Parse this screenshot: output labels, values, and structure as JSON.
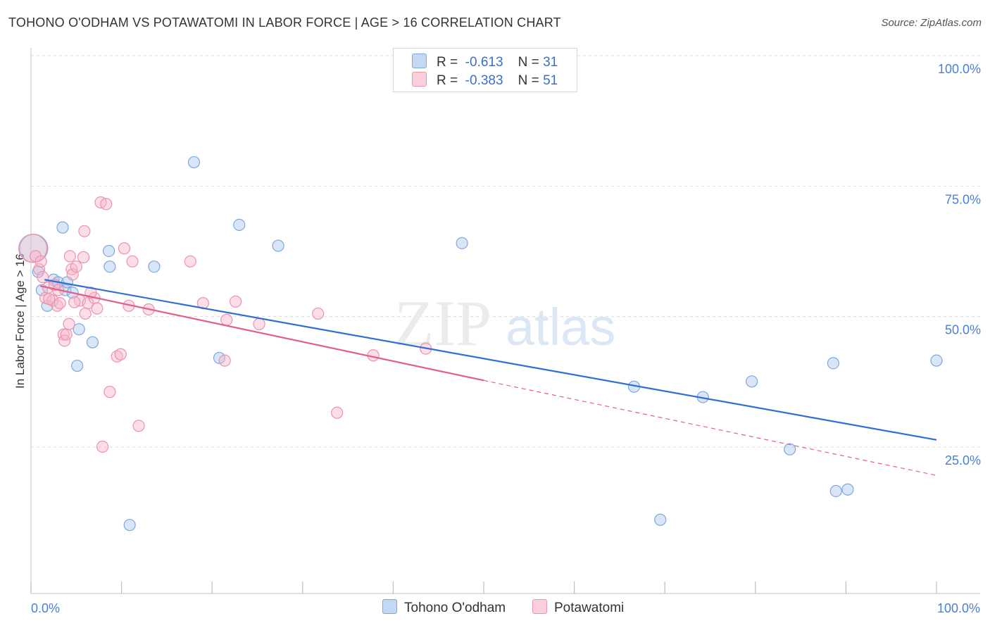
{
  "title": "TOHONO O'ODHAM VS POTAWATOMI IN LABOR FORCE | AGE > 16 CORRELATION CHART",
  "source": "Source: ZipAtlas.com",
  "watermark": {
    "zip": "ZIP",
    "atlas": "atlas"
  },
  "legend": {
    "rows": [
      {
        "r_label": "R =",
        "r_value": "-0.613",
        "n_label": "N =",
        "n_value": "31",
        "color": "#a9c8f0"
      },
      {
        "r_label": "R =",
        "r_value": "-0.383",
        "n_label": "N =",
        "n_value": "51",
        "color": "#f6b6c9"
      }
    ]
  },
  "bottom_legend": [
    {
      "label": "Tohono O'odham",
      "color": "#a9c8f0"
    },
    {
      "label": "Potawatomi",
      "color": "#f6b6c9"
    }
  ],
  "chart_data": {
    "type": "scatter",
    "title": "TOHONO O'ODHAM VS POTAWATOMI IN LABOR FORCE | AGE > 16 CORRELATION CHART",
    "xlabel": "",
    "ylabel": "In Labor Force | Age > 16",
    "xlim": [
      0,
      100
    ],
    "ylim": [
      2,
      103
    ],
    "x_tick_labels": [
      "0.0%",
      "100.0%"
    ],
    "y_ticks": [
      {
        "value": 25,
        "label": "25.0%"
      },
      {
        "value": 50,
        "label": "50.0%"
      },
      {
        "value": 75,
        "label": "75.0%"
      },
      {
        "value": 100,
        "label": "100.0%"
      }
    ],
    "grid": "horizontal dashed",
    "series": [
      {
        "name": "Tohono O'odham",
        "color": "#a9c8f0",
        "stroke": "#7fa8dd",
        "trend_color": "#2f6fd0",
        "trend": {
          "x0": 1.5,
          "y0": 59.5,
          "x1": 100,
          "y1": 28.8
        },
        "points": [
          [
            0.3,
            65.5
          ],
          [
            0.8,
            61.0
          ],
          [
            1.2,
            57.5
          ],
          [
            1.8,
            54.5
          ],
          [
            2.5,
            59.5
          ],
          [
            3.0,
            59.0
          ],
          [
            3.8,
            57.5
          ],
          [
            4.6,
            57.0
          ],
          [
            5.3,
            50.0
          ],
          [
            5.1,
            43.0
          ],
          [
            6.8,
            47.5
          ],
          [
            3.5,
            69.5
          ],
          [
            8.6,
            65.0
          ],
          [
            8.7,
            62.0
          ],
          [
            13.6,
            62.0
          ],
          [
            18.0,
            82.0
          ],
          [
            23.0,
            70.0
          ],
          [
            27.3,
            66.0
          ],
          [
            47.6,
            66.5
          ],
          [
            20.8,
            44.5
          ],
          [
            10.9,
            12.5
          ],
          [
            66.6,
            39.0
          ],
          [
            74.2,
            37.0
          ],
          [
            79.6,
            40.0
          ],
          [
            83.8,
            27.0
          ],
          [
            88.6,
            43.5
          ],
          [
            88.9,
            19.0
          ],
          [
            90.2,
            19.3
          ],
          [
            100.0,
            44.0
          ],
          [
            69.5,
            13.5
          ],
          [
            4.0,
            59.0
          ]
        ]
      },
      {
        "name": "Potawatomi",
        "color": "#f6b6c9",
        "stroke": "#ec93ad",
        "trend_color": "#e0608c",
        "trend": {
          "x0": 1.0,
          "y0": 58.3,
          "x1": 50,
          "y1": 40.2
        },
        "trend_dashed": {
          "x0": 50,
          "y0": 40.2,
          "x1": 100,
          "y1": 22.0
        },
        "points": [
          [
            0.2,
            65.5
          ],
          [
            0.5,
            64.0
          ],
          [
            0.9,
            61.5
          ],
          [
            1.3,
            60.0
          ],
          [
            1.6,
            56.0
          ],
          [
            1.9,
            58.0
          ],
          [
            2.4,
            55.5
          ],
          [
            2.6,
            58.5
          ],
          [
            2.9,
            54.5
          ],
          [
            3.2,
            55.0
          ],
          [
            3.6,
            49.0
          ],
          [
            3.7,
            47.8
          ],
          [
            3.9,
            49.0
          ],
          [
            4.2,
            51.0
          ],
          [
            4.5,
            61.5
          ],
          [
            4.3,
            64.0
          ],
          [
            4.6,
            60.5
          ],
          [
            5.0,
            62.0
          ],
          [
            5.4,
            55.5
          ],
          [
            5.8,
            63.8
          ],
          [
            6.0,
            53.0
          ],
          [
            6.3,
            55.0
          ],
          [
            5.9,
            68.8
          ],
          [
            7.0,
            56.0
          ],
          [
            7.3,
            54.0
          ],
          [
            7.7,
            74.3
          ],
          [
            8.3,
            74.0
          ],
          [
            9.5,
            44.8
          ],
          [
            9.9,
            45.2
          ],
          [
            8.7,
            38.0
          ],
          [
            7.9,
            27.5
          ],
          [
            10.3,
            65.5
          ],
          [
            10.8,
            54.5
          ],
          [
            11.2,
            63.0
          ],
          [
            11.9,
            31.5
          ],
          [
            13.0,
            53.8
          ],
          [
            17.6,
            63.0
          ],
          [
            19.0,
            55.0
          ],
          [
            21.4,
            44.0
          ],
          [
            21.6,
            51.8
          ],
          [
            22.6,
            55.3
          ],
          [
            25.2,
            51.0
          ],
          [
            31.7,
            53.0
          ],
          [
            33.8,
            34.0
          ],
          [
            37.8,
            45.0
          ],
          [
            43.6,
            46.3
          ],
          [
            3.0,
            57.5
          ],
          [
            2.0,
            55.8
          ],
          [
            6.6,
            57.0
          ],
          [
            4.8,
            55.2
          ],
          [
            1.1,
            63.0
          ]
        ]
      }
    ]
  }
}
